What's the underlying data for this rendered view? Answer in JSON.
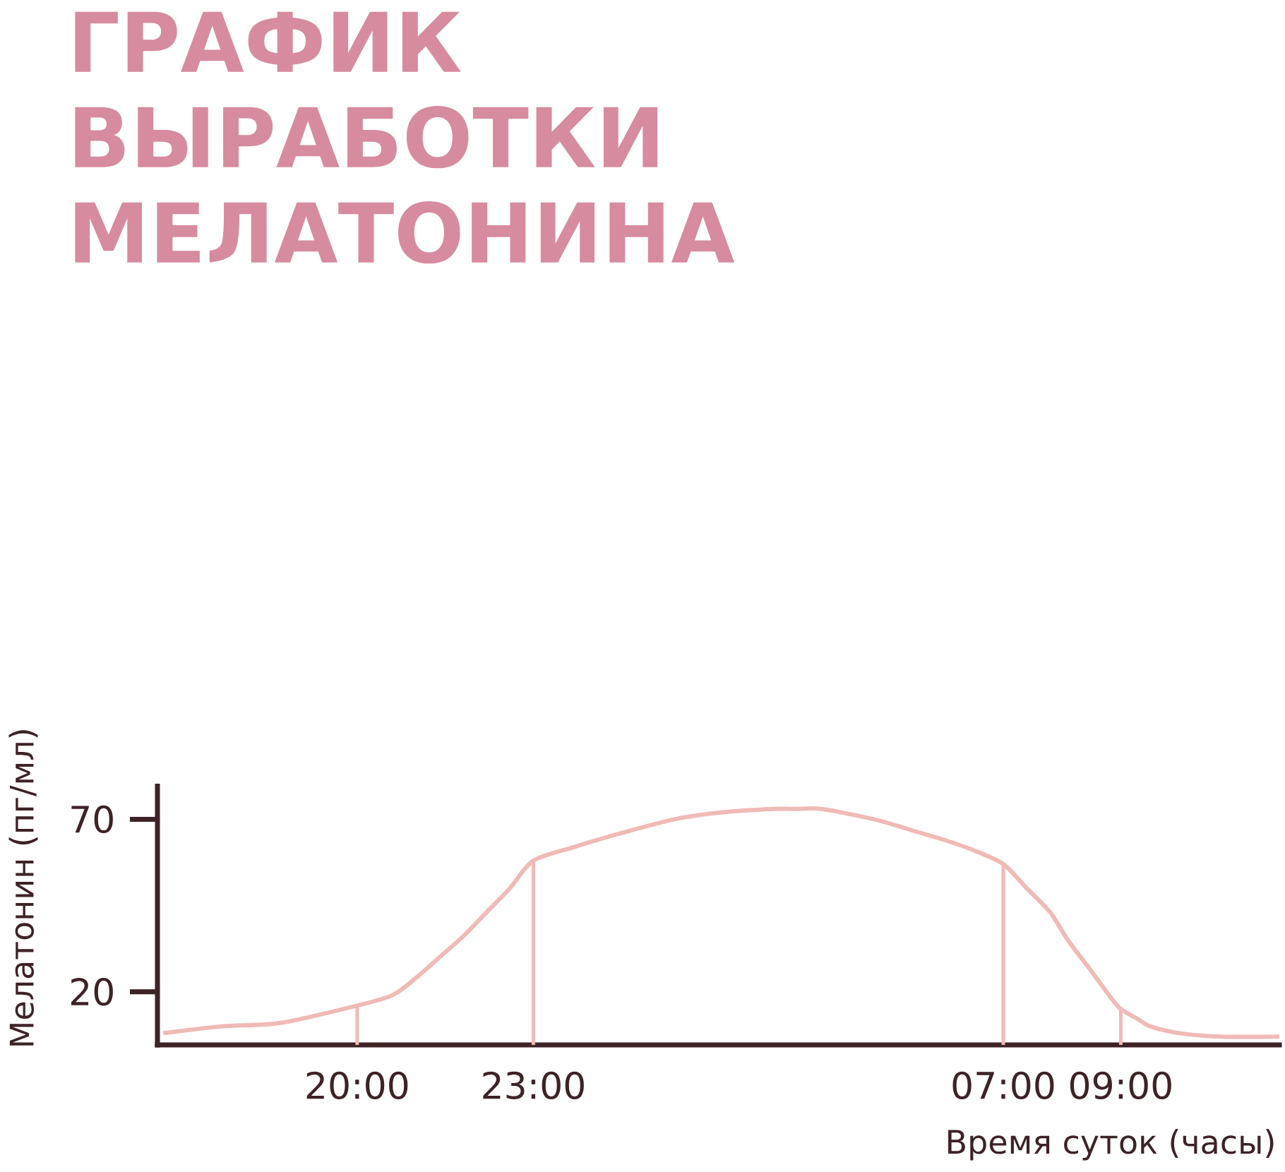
{
  "chart_data": {
    "type": "line",
    "title": "ГРАФИК ВЫРАБОТКИ МЕЛАТОНИНА",
    "xlabel": "Время суток (часы)",
    "ylabel": "Мелатонин (пг/мл)",
    "x": [
      "2000-01-01T16:42",
      "2000-01-01T17:42",
      "2000-01-01T18:42",
      "2000-01-01T20:00",
      "2000-01-01T20:36",
      "2000-01-01T21:00",
      "2000-01-01T21:24",
      "2000-01-01T21:48",
      "2000-01-01T22:12",
      "2000-01-01T22:36",
      "2000-01-01T23:00",
      "2000-01-01T23:42",
      "2000-01-02T00:30",
      "2000-01-02T01:24",
      "2000-01-02T02:12",
      "2000-01-02T03:06",
      "2000-01-02T03:30",
      "2000-01-02T03:54",
      "2000-01-02T04:48",
      "2000-01-02T05:36",
      "2000-01-02T06:00",
      "2000-01-02T06:30",
      "2000-01-02T07:00",
      "2000-01-02T07:24",
      "2000-01-02T07:48",
      "2000-01-02T08:06",
      "2000-01-02T08:30",
      "2000-01-02T08:48",
      "2000-01-02T09:00",
      "2000-01-02T09:18",
      "2000-01-02T09:30",
      "2000-01-02T10:00",
      "2000-01-02T10:42",
      "2000-01-02T11:42"
    ],
    "values": [
      8,
      10,
      11,
      16,
      19,
      24,
      30,
      36,
      43,
      50,
      58,
      62,
      66,
      70,
      72,
      73,
      73,
      73,
      70,
      66,
      64,
      61,
      57,
      50,
      43,
      35,
      26,
      19,
      15,
      12,
      10,
      8,
      7,
      7
    ],
    "color": "#f0bab6",
    "xlim": [
      "2000-01-01T16:36",
      "2000-01-02T11:42"
    ],
    "ylim": [
      4.6,
      79.6
    ],
    "xticks": [
      {
        "value": "2000-01-01T20:00",
        "label": "20:00"
      },
      {
        "value": "2000-01-01T23:00",
        "label": "23:00"
      },
      {
        "value": "2000-01-02T07:00",
        "label": "07:00"
      },
      {
        "value": "2000-01-02T09:00",
        "label": "09:00"
      }
    ],
    "yticks": [
      20,
      70
    ],
    "ref_lines": [
      {
        "axis": "x",
        "value": "2000-01-01T20:00",
        "color": "#f0bab6"
      },
      {
        "axis": "x",
        "value": "2000-01-01T23:00",
        "color": "#f0bab6"
      },
      {
        "axis": "x",
        "value": "2000-01-02T07:00",
        "color": "#f0bab6"
      },
      {
        "axis": "x",
        "value": "2000-01-02T09:00",
        "color": "#f0bab6"
      }
    ]
  }
}
